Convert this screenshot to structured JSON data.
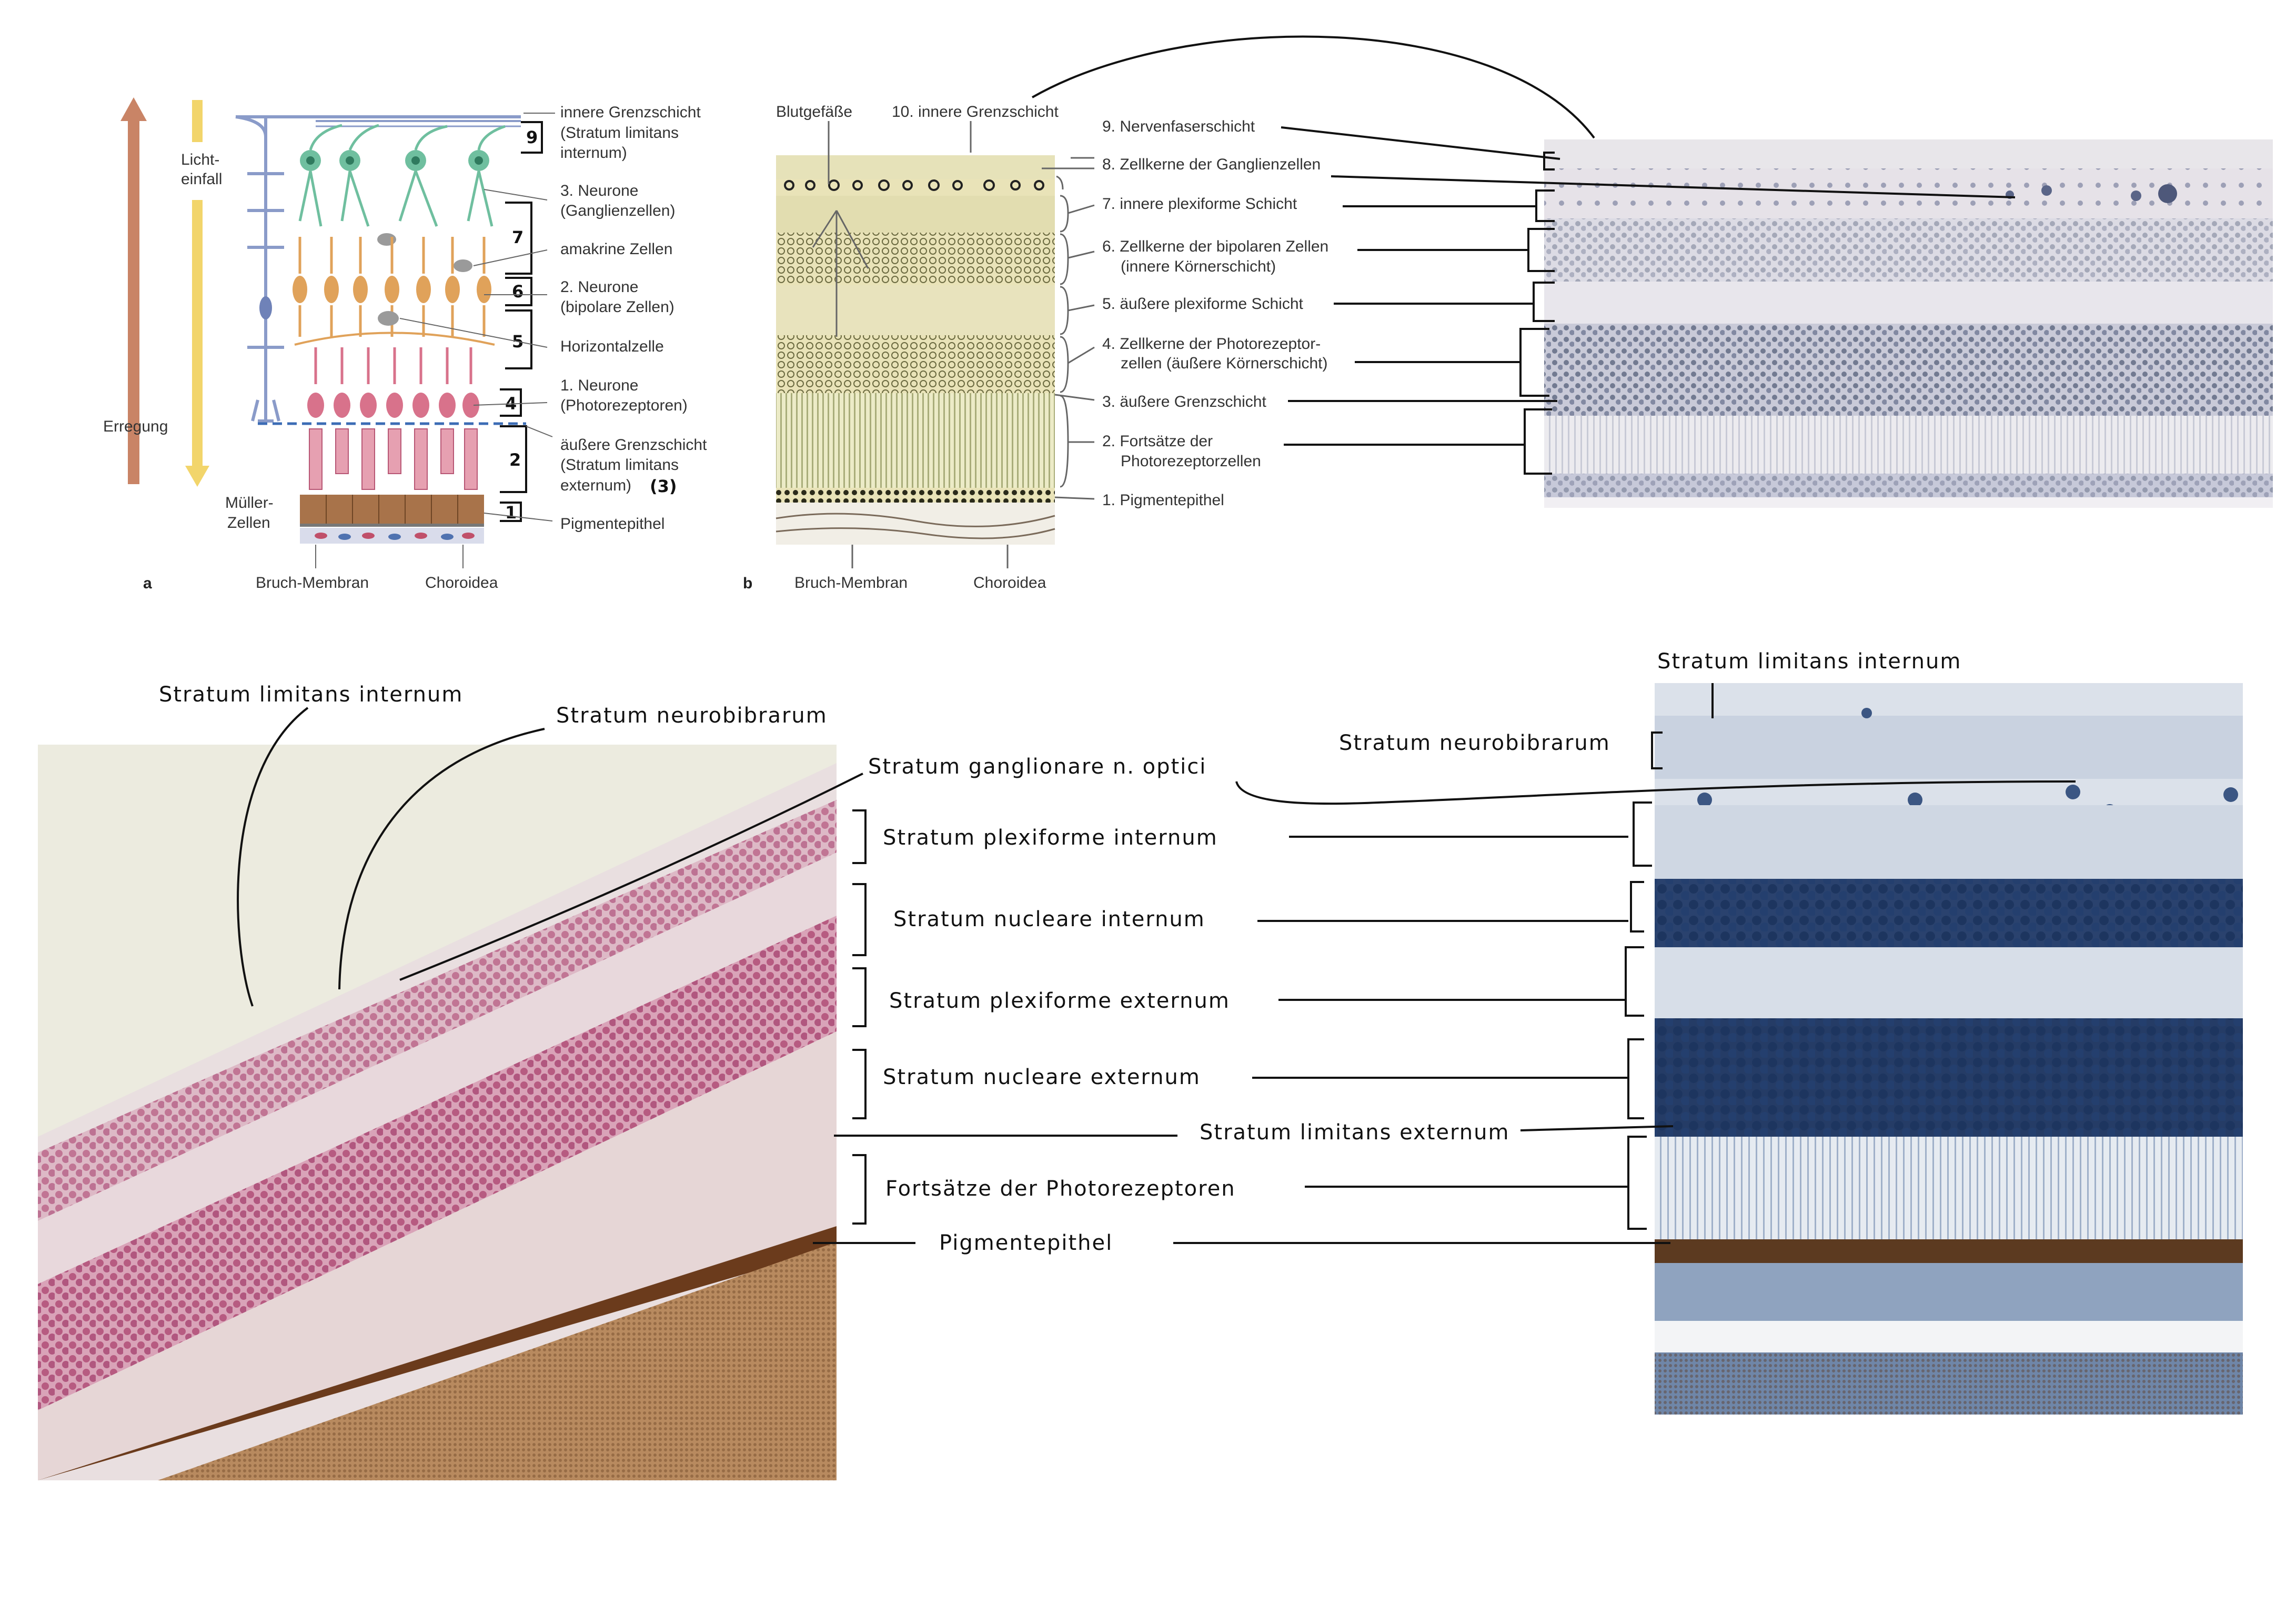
{
  "figure_a": {
    "panel_letter": "a",
    "arrow_left_label": "Erregung",
    "arrow_right_label": "Licht-\neinfall",
    "mueller_label": "Müller-\nZellen",
    "labels": [
      "innere Grenzschicht\n(Stratum limitans\ninternum)",
      "3. Neurone\n(Ganglienzellen)",
      "amakrine Zellen",
      "2. Neurone\n(bipolare Zellen)",
      "Horizontalzelle",
      "1. Neurone\n(Photorezeptoren)",
      "äußere Grenzschicht\n(Stratum limitans\nexternum)",
      "Pigmentepithel"
    ],
    "annotation_3": "(3)",
    "bottom_labels": [
      "Bruch-Membran",
      "Choroidea"
    ],
    "numbers": [
      "9",
      "7",
      "6",
      "5",
      "4",
      "2",
      "1"
    ]
  },
  "figure_b": {
    "panel_letter": "b",
    "top_labels": [
      "Blutgefäße",
      "10. innere Grenzschicht"
    ],
    "layers": [
      "9. Nervenfaserschicht",
      "8. Zellkerne der Ganglienzellen",
      "7. innere plexiforme Schicht",
      "6. Zellkerne der bipolaren Zellen\n(innere Körnerschicht)",
      "5. äußere plexiforme Schicht",
      "4. Zellkerne der Photorezeptor-\nzellen (äußere Körnerschicht)",
      "3. äußere Grenzschicht",
      "2. Fortsätze der\nPhotorezeptorzellen",
      "1. Pigmentepithel"
    ],
    "bottom_labels": [
      "Bruch-Membran",
      "Choroidea"
    ]
  },
  "handwritten": {
    "left_top": [
      "Stratum limitans internum",
      "Stratum neurobibrarum",
      "Stratum ganglionare n. optici"
    ],
    "middle": [
      "Stratum plexiforme internum",
      "Stratum nucleare internum",
      "Stratum plexiforme externum",
      "Stratum nucleare externum",
      "Stratum limitans externum",
      "Fortsätze der Photorezeptoren",
      "Pigmentepithel"
    ],
    "right_top": [
      "Stratum limitans internum",
      "Stratum neurobibrarum"
    ]
  },
  "colors": {
    "muller": "#8a9bc9",
    "ganglion": "#6fbf9f",
    "bipolar": "#e0a25a",
    "photoreceptor": "#d8728b",
    "pigment": "#a8734a",
    "he_stain": "#c76a88",
    "blue_stain": "#1e3a6b",
    "erregung_arrow": "#c98466",
    "licht_arrow": "#f2d56b"
  }
}
